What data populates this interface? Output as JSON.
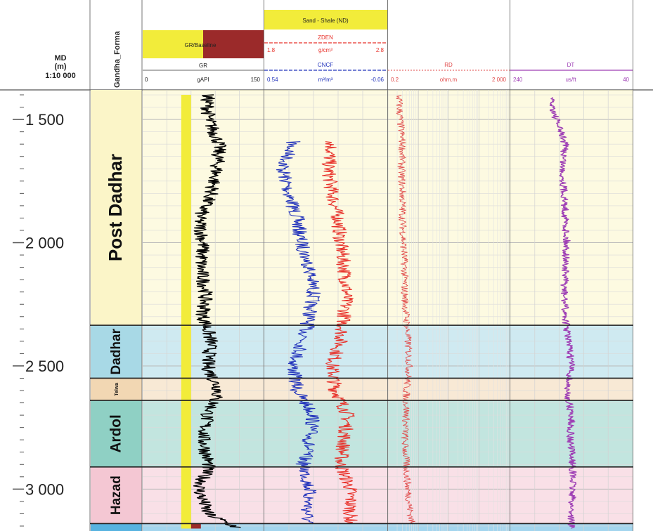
{
  "depth_header": {
    "line1": "MD",
    "line2": "(m)",
    "scale": "1:10 000"
  },
  "formation_track_title": "Gandha_Forma",
  "tracks": {
    "gr": {
      "fill_label": "GR/Baseline",
      "curve": "GR",
      "unit": "gAPI",
      "min_label": "0",
      "max_label": "150"
    },
    "nd": {
      "fill_label": "Sand - Shale (ND)",
      "zden": "ZDEN",
      "zden_unit": "g/cm³",
      "zden_min": "1.8",
      "zden_max": "2.8",
      "cncf": "CNCF",
      "cncf_unit": "m³/m³",
      "cncf_min": "0.54",
      "cncf_max": "-0.06"
    },
    "rd": {
      "curve": "RD",
      "unit": "ohm.m",
      "min_label": "0.2",
      "max_label": "2 000"
    },
    "dt": {
      "curve": "DT",
      "unit": "us/ft",
      "min_label": "240",
      "max_label": "40"
    }
  },
  "colors": {
    "gr_curve": "#000000",
    "sand_fill": "#f2ec3a",
    "shale_fill": "#9b2a2a",
    "cncf": "#2233bb",
    "zden": "#e8312a",
    "rd": "#e04848",
    "dt": "#9e3fb5"
  },
  "chart_data": {
    "type": "line",
    "ylabel": "MD (m)",
    "depth_range": [
      1380,
      3170
    ],
    "depth_ticks": [
      1500,
      2000,
      2500,
      3000
    ],
    "depth_tick_labels": [
      "1 500",
      "2 000",
      "2 500",
      "3 000"
    ],
    "formations": [
      {
        "name": "Post Dadhar",
        "top": 1380,
        "base": 2335,
        "color": "#fbf5c8"
      },
      {
        "name": "Dadhar",
        "top": 2335,
        "base": 2550,
        "color": "#a8d9e6"
      },
      {
        "name": "Telwa",
        "top": 2550,
        "base": 2640,
        "color": "#f2d7b3"
      },
      {
        "name": "Ardol",
        "top": 2640,
        "base": 2910,
        "color": "#8fd0c4"
      },
      {
        "name": "Hazad",
        "top": 2910,
        "base": 3140,
        "color": "#f4c7d3"
      },
      {
        "name": "",
        "top": 3140,
        "base": 3170,
        "color": "#58b3e0"
      }
    ],
    "series": [
      {
        "name": "GR",
        "unit": "gAPI",
        "scale": [
          0,
          150
        ],
        "depth": [
          1400,
          1500,
          1600,
          1700,
          1800,
          1900,
          2000,
          2100,
          2200,
          2300,
          2400,
          2500,
          2600,
          2700,
          2800,
          2900,
          3000,
          3100,
          3160
        ],
        "values": [
          80,
          82,
          95,
          92,
          85,
          70,
          75,
          72,
          78,
          75,
          85,
          80,
          95,
          80,
          75,
          82,
          70,
          80,
          120
        ]
      },
      {
        "name": "CNCF",
        "unit": "m³/m³",
        "scale": [
          0.54,
          -0.06
        ],
        "depth": [
          1590,
          1700,
          1800,
          1900,
          2000,
          2100,
          2200,
          2300,
          2400,
          2500,
          2600,
          2700,
          2800,
          2900,
          3000,
          3100,
          3140
        ],
        "values": [
          0.4,
          0.45,
          0.42,
          0.38,
          0.36,
          0.32,
          0.3,
          0.32,
          0.35,
          0.4,
          0.38,
          0.3,
          0.32,
          0.35,
          0.32,
          0.33,
          0.33
        ]
      },
      {
        "name": "ZDEN",
        "unit": "g/cm³",
        "scale": [
          1.8,
          2.8
        ],
        "depth": [
          1590,
          1700,
          1800,
          1900,
          2000,
          2100,
          2200,
          2300,
          2400,
          2500,
          2600,
          2700,
          2800,
          2900,
          3000,
          3100,
          3140
        ],
        "values": [
          2.35,
          2.32,
          2.35,
          2.4,
          2.42,
          2.45,
          2.47,
          2.45,
          2.42,
          2.35,
          2.38,
          2.48,
          2.45,
          2.42,
          2.5,
          2.5,
          2.5
        ]
      },
      {
        "name": "RD",
        "unit": "ohm.m",
        "scale": [
          0.2,
          2000
        ],
        "log": true,
        "depth": [
          1400,
          1500,
          1600,
          1700,
          1800,
          1900,
          2000,
          2100,
          2200,
          2300,
          2400,
          2500,
          2600,
          2700,
          2800,
          2900,
          3000,
          3100,
          3140
        ],
        "values": [
          0.45,
          0.5,
          0.6,
          0.55,
          0.6,
          0.6,
          0.65,
          0.7,
          0.7,
          0.8,
          0.9,
          1.0,
          0.8,
          0.8,
          0.7,
          0.8,
          0.9,
          1.1,
          1.2
        ]
      },
      {
        "name": "DT",
        "unit": "us/ft",
        "scale": [
          240,
          40
        ],
        "depth": [
          1410,
          1500,
          1600,
          1700,
          1800,
          1900,
          2000,
          2100,
          2200,
          2300,
          2400,
          2500,
          2600,
          2700,
          2800,
          2900,
          3000,
          3100,
          3160
        ],
        "values": [
          175,
          165,
          150,
          155,
          152,
          150,
          148,
          150,
          152,
          150,
          145,
          140,
          148,
          140,
          142,
          138,
          138,
          140,
          140
        ]
      }
    ]
  }
}
